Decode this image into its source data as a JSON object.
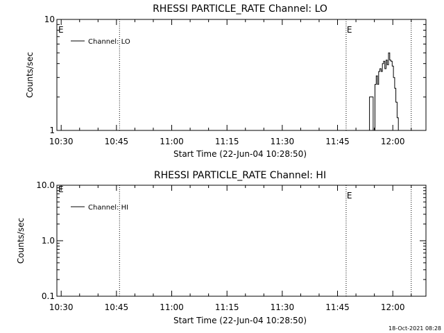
{
  "chart_data": [
    {
      "type": "line",
      "title": "RHESSI PARTICLE_RATE Channel: LO",
      "xlabel": "Start Time (22-Jun-04 10:28:50)",
      "ylabel": "Counts/sec",
      "y_scale": "log",
      "xlim": [
        "10:28:50",
        "12:09:00"
      ],
      "ylim": [
        1,
        10
      ],
      "x_ticks": [
        "10:30",
        "10:45",
        "11:00",
        "11:15",
        "11:30",
        "11:45",
        "12:00"
      ],
      "y_ticks": [
        "1",
        "10"
      ],
      "legend": {
        "placement": "top-left",
        "entries": [
          "Channel: LO"
        ]
      },
      "event_lines": [
        {
          "time": "10:45:50",
          "marker": ""
        },
        {
          "time": "11:47:20",
          "marker": "E"
        },
        {
          "time": "12:05:00",
          "marker": ""
        }
      ],
      "corner_marker": "E",
      "series": [
        {
          "name": "Channel: LO",
          "x": [
            "11:53:10",
            "11:53:40",
            "11:54:10",
            "11:54:40",
            "11:55:10",
            "11:55:30",
            "11:55:50",
            "11:56:10",
            "11:56:30",
            "11:56:50",
            "11:57:10",
            "11:57:30",
            "11:57:50",
            "11:58:10",
            "11:58:30",
            "11:58:50",
            "11:59:10",
            "11:59:30",
            "11:59:50",
            "12:00:10",
            "12:00:30",
            "12:00:50",
            "12:01:10",
            "12:01:30"
          ],
          "y": [
            0.8,
            2.0,
            2.0,
            0.8,
            2.6,
            3.1,
            2.6,
            3.4,
            3.6,
            3.4,
            4.0,
            4.2,
            3.6,
            4.3,
            3.9,
            5.0,
            4.3,
            4.2,
            3.8,
            3.0,
            2.4,
            1.8,
            1.3,
            0.8
          ]
        }
      ]
    },
    {
      "type": "line",
      "title": "RHESSI PARTICLE_RATE Channel: HI",
      "xlabel": "Start Time (22-Jun-04 10:28:50)",
      "ylabel": "Counts/sec",
      "y_scale": "log",
      "xlim": [
        "10:28:50",
        "12:09:00"
      ],
      "ylim": [
        0.1,
        10
      ],
      "x_ticks": [
        "10:30",
        "10:45",
        "11:00",
        "11:15",
        "11:30",
        "11:45",
        "12:00"
      ],
      "y_ticks": [
        "0.1",
        "1.0",
        "10.0"
      ],
      "legend": {
        "placement": "top-left",
        "entries": [
          "Channel: HI"
        ]
      },
      "event_lines": [
        {
          "time": "10:45:50",
          "marker": ""
        },
        {
          "time": "11:47:20",
          "marker": "E"
        },
        {
          "time": "12:05:00",
          "marker": ""
        }
      ],
      "corner_marker": "E",
      "series": [
        {
          "name": "Channel: HI",
          "x": [],
          "y": []
        }
      ]
    }
  ],
  "footer": {
    "timestamp": "18-Oct-2021 08:28"
  }
}
